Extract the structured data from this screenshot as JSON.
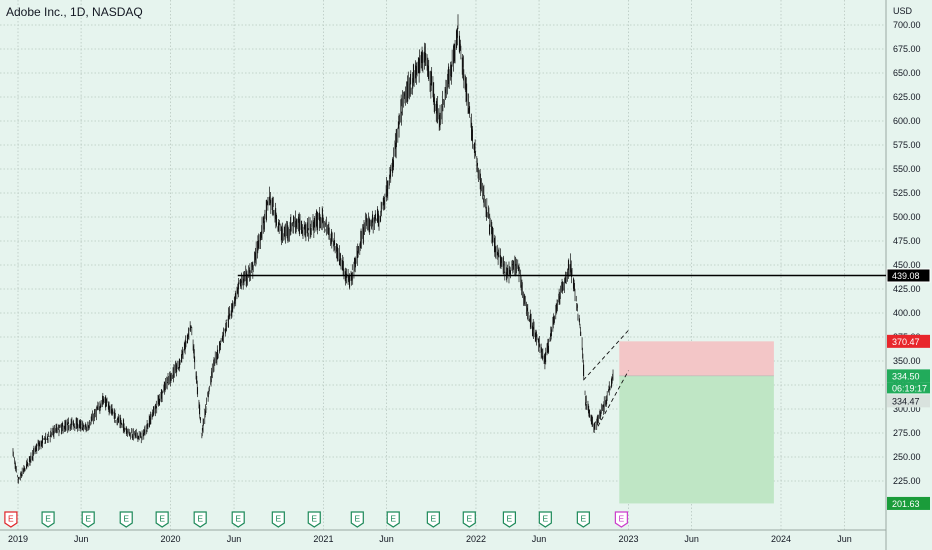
{
  "header": {
    "title": "Adobe Inc., 1D, NASDAQ"
  },
  "colors": {
    "background": "#e6f4ee",
    "grid": "#b8c8c0",
    "candles": "#111111",
    "support_line": "#000000",
    "stop_zone": "#f3c6c7",
    "target_zone": "#bfe6c5",
    "stop_label": "#e8262b",
    "target_label": "#1a9c3a",
    "price_label": "#22ab5b",
    "earnings_normal": "#1e8a5a",
    "earnings_next": "#cc3ccc",
    "earnings_first": "#e0262b"
  },
  "icons": {
    "earnings": "earnings-e-flag-icon"
  },
  "labels": {
    "currency": "USD",
    "support_price": "439.08",
    "stop_price": "370.47",
    "last_price": "334.50",
    "countdown": "06:19:17",
    "prev_price": "334.47",
    "target_price": "201.63",
    "earnings_letter": "E"
  },
  "chart_data": {
    "type": "line",
    "title": "Adobe Inc., 1D, NASDAQ",
    "ylabel": "USD",
    "ylim": [
      195,
      705
    ],
    "y_ticks": [
      "700.00",
      "675.00",
      "650.00",
      "625.00",
      "600.00",
      "575.00",
      "550.00",
      "525.00",
      "500.00",
      "475.00",
      "450.00",
      "425.00",
      "400.00",
      "375.00",
      "350.00",
      "325.00",
      "300.00",
      "275.00",
      "250.00",
      "225.00"
    ],
    "x_ticks": [
      "2019",
      "Jun",
      "2020",
      "Jun",
      "2021",
      "Jun",
      "2022",
      "Jun",
      "2023",
      "Jun",
      "2024",
      "Jun"
    ],
    "x_tick_dates": [
      "2019-01-01",
      "2019-06-01",
      "2020-01-01",
      "2020-06-01",
      "2021-01-01",
      "2021-06-01",
      "2022-01-01",
      "2022-06-01",
      "2023-01-01",
      "2023-06-01",
      "2024-01-01",
      "2024-06-01"
    ],
    "series": [
      {
        "values_by_date": [
          [
            "2018-12-20",
            255
          ],
          [
            "2019-01-01",
            225
          ],
          [
            "2019-02-15",
            260
          ],
          [
            "2019-04-01",
            278
          ],
          [
            "2019-05-15",
            285
          ],
          [
            "2019-06-15",
            280
          ],
          [
            "2019-07-25",
            310
          ],
          [
            "2019-08-25",
            290
          ],
          [
            "2019-09-25",
            275
          ],
          [
            "2019-10-25",
            270
          ],
          [
            "2019-11-25",
            300
          ],
          [
            "2019-12-20",
            325
          ],
          [
            "2020-01-20",
            345
          ],
          [
            "2020-02-20",
            385
          ],
          [
            "2020-03-16",
            275
          ],
          [
            "2020-04-10",
            340
          ],
          [
            "2020-05-15",
            390
          ],
          [
            "2020-06-15",
            430
          ],
          [
            "2020-07-15",
            445
          ],
          [
            "2020-08-25",
            520
          ],
          [
            "2020-09-25",
            480
          ],
          [
            "2020-10-25",
            495
          ],
          [
            "2020-11-25",
            485
          ],
          [
            "2020-12-25",
            500
          ],
          [
            "2021-01-25",
            475
          ],
          [
            "2021-03-05",
            430
          ],
          [
            "2021-04-10",
            490
          ],
          [
            "2021-05-15",
            500
          ],
          [
            "2021-06-10",
            540
          ],
          [
            "2021-07-10",
            620
          ],
          [
            "2021-08-10",
            650
          ],
          [
            "2021-09-01",
            670
          ],
          [
            "2021-10-05",
            600
          ],
          [
            "2021-11-05",
            660
          ],
          [
            "2021-11-20",
            695
          ],
          [
            "2021-12-15",
            610
          ],
          [
            "2022-01-05",
            550
          ],
          [
            "2022-02-15",
            470
          ],
          [
            "2022-03-15",
            440
          ],
          [
            "2022-04-10",
            450
          ],
          [
            "2022-05-05",
            400
          ],
          [
            "2022-06-15",
            350
          ],
          [
            "2022-07-15",
            410
          ],
          [
            "2022-08-15",
            450
          ],
          [
            "2022-09-10",
            380
          ],
          [
            "2022-09-20",
            310
          ],
          [
            "2022-10-10",
            280
          ],
          [
            "2022-11-05",
            305
          ],
          [
            "2022-11-25",
            335
          ]
        ]
      }
    ],
    "horizontal_line": {
      "value": 439.08,
      "from": "2020-06-10",
      "to_axis": true
    },
    "trade_box": {
      "from": "2022-12-10",
      "to": "2023-12-15",
      "entry": 334.5,
      "stop": 370.47,
      "target": 201.63
    },
    "channel": [
      {
        "from": [
          "2022-09-15",
          330
        ],
        "to": [
          "2023-01-01",
          382
        ]
      },
      {
        "from": [
          "2022-10-20",
          282
        ],
        "to": [
          "2023-01-01",
          340
        ]
      }
    ],
    "earnings_dates": [
      "2018-12-15",
      "2019-03-14",
      "2019-06-18",
      "2019-09-17",
      "2019-12-12",
      "2020-03-12",
      "2020-06-11",
      "2020-09-15",
      "2020-12-10",
      "2021-03-23",
      "2021-06-17",
      "2021-09-21",
      "2021-12-16",
      "2022-03-22",
      "2022-06-16",
      "2022-09-15",
      "2022-12-15"
    ],
    "legend": "none",
    "grid": true
  }
}
